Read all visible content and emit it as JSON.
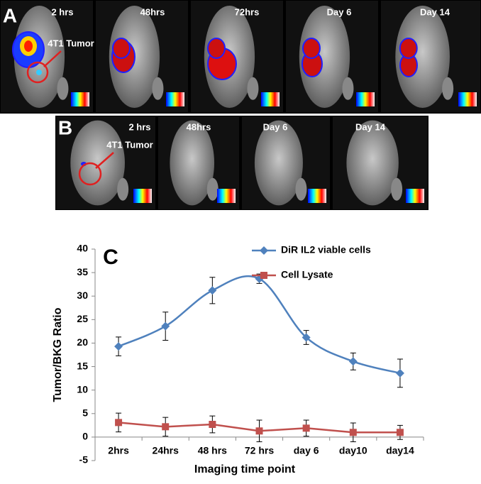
{
  "panels": {
    "a": {
      "label": "A",
      "timepoints": [
        "2 hrs",
        "48hrs",
        "72hrs",
        "Day 6",
        "Day 14"
      ],
      "annotation": "4T1 Tumor"
    },
    "b": {
      "label": "B",
      "timepoints": [
        "2 hrs",
        "48hrs",
        "Day 6",
        "Day 14"
      ],
      "annotation": "4T1 Tumor"
    }
  },
  "chart_data": {
    "type": "line",
    "panel_label": "C",
    "xlabel": "Imaging time point",
    "ylabel": "Tumor/BKG Ratio",
    "categories": [
      "2hrs",
      "24hrs",
      "48 hrs",
      "72 hrs",
      "day 6",
      "day10",
      "day14"
    ],
    "series": [
      {
        "name": "DiR IL2 viable cells",
        "color": "#4f81bd",
        "marker": "diamond",
        "smooth": true,
        "values": [
          19.3,
          23.6,
          31.2,
          33.7,
          21.2,
          16.1,
          13.6
        ],
        "errors": [
          2,
          3,
          2.8,
          1,
          1.5,
          1.8,
          3
        ]
      },
      {
        "name": "Cell Lysate",
        "color": "#c0504d",
        "marker": "square",
        "smooth": false,
        "values": [
          3.1,
          2.2,
          2.7,
          1.3,
          1.9,
          1.0,
          1.0
        ],
        "errors": [
          2,
          2,
          1.8,
          2.3,
          1.7,
          2,
          1.5
        ]
      }
    ],
    "ylim": [
      -5,
      40
    ],
    "yticks": [
      -5,
      0,
      5,
      10,
      15,
      20,
      25,
      30,
      35,
      40
    ],
    "grid": false,
    "legend": "top-right"
  }
}
